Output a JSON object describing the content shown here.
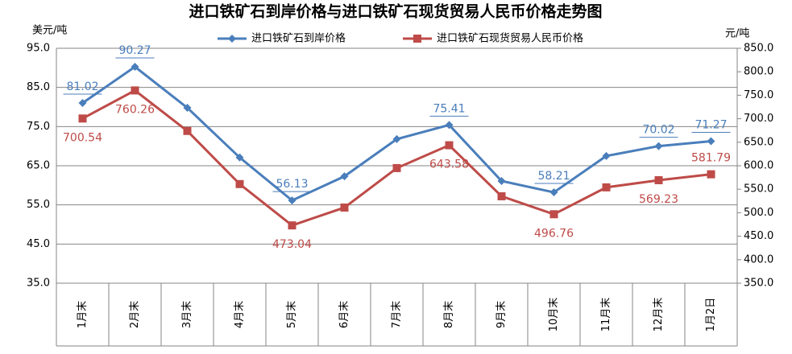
{
  "chart_data": {
    "type": "line",
    "title": "进口铁矿石到岸价格与进口铁矿石现货贸易人民币价格走势图",
    "y_label": "美元/吨",
    "y2_label": "元/吨",
    "categories": [
      "1月末",
      "2月末",
      "3月末",
      "4月末",
      "5月末",
      "6月末",
      "7月末",
      "8月末",
      "9月末",
      "10月末",
      "11月末",
      "12月末",
      "1月2日"
    ],
    "series": [
      {
        "name": "进口铁矿石到岸价格",
        "color": "#4a7ebb",
        "marker": "diamond",
        "values": [
          81.02,
          90.27,
          79.8,
          67.1,
          56.13,
          62.3,
          71.8,
          75.41,
          61.1,
          58.21,
          67.5,
          70.02,
          71.27
        ],
        "value_labels": [
          "81.02",
          "90.27",
          null,
          null,
          "56.13",
          null,
          null,
          "75.41",
          null,
          "58.21",
          null,
          "70.02",
          "71.27"
        ]
      },
      {
        "name": "进口铁矿石现货贸易人民币价格",
        "color": "#be4b48",
        "marker": "square",
        "axis": "y2",
        "values": [
          700.54,
          760.26,
          674,
          561,
          473.04,
          511,
          595,
          643.58,
          535,
          496.76,
          554,
          569.23,
          581.79
        ],
        "value_labels": [
          "700.54",
          "760.26",
          null,
          null,
          "473.04",
          null,
          null,
          "643.58",
          null,
          "496.76",
          null,
          "569.23",
          "581.79"
        ]
      }
    ],
    "ylim": [
      35,
      95
    ],
    "yticks": [
      {
        "value": 35,
        "label": "35.0"
      },
      {
        "value": 45,
        "label": "45.0"
      },
      {
        "value": 55,
        "label": "55.0"
      },
      {
        "value": 65,
        "label": "65.0"
      },
      {
        "value": 75,
        "label": "75.0"
      },
      {
        "value": 85,
        "label": "85.0"
      },
      {
        "value": 95,
        "label": "95.0"
      }
    ],
    "y2lim": [
      350,
      850
    ],
    "y2ticks": [
      {
        "value": 350,
        "label": "350.0"
      },
      {
        "value": 400,
        "label": "400.0"
      },
      {
        "value": 450,
        "label": "450.0"
      },
      {
        "value": 500,
        "label": "500.0"
      },
      {
        "value": 550,
        "label": "550.0"
      },
      {
        "value": 600,
        "label": "600.0"
      },
      {
        "value": 650,
        "label": "650.0"
      },
      {
        "value": 700,
        "label": "700.0"
      },
      {
        "value": 750,
        "label": "750.0"
      },
      {
        "value": 800,
        "label": "800.0"
      },
      {
        "value": 850,
        "label": "850.0"
      }
    ],
    "grid": true,
    "legend": "top"
  }
}
